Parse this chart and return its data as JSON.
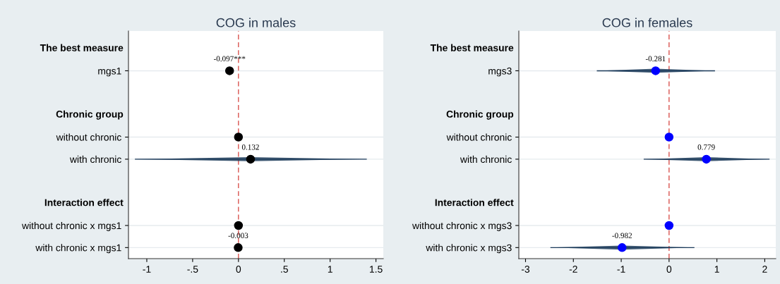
{
  "chart_data": [
    {
      "type": "scatter",
      "orientation": "horizontal",
      "title": "COG in males",
      "categories": [
        "The best measure",
        "mgs1",
        null,
        "Chronic group",
        "without chronic",
        "with chronic",
        null,
        "Interaction effect",
        "without chronic x mgs1",
        "with chronic x mgs1"
      ],
      "color": "#000000",
      "values": [
        null,
        -0.097,
        null,
        null,
        0,
        0.132,
        null,
        null,
        0,
        -0.003
      ],
      "errors": [
        null,
        null,
        null,
        null,
        null,
        [
          -1.13,
          1.4
        ],
        null,
        null,
        null,
        null
      ],
      "value_labels": [
        null,
        "-0.097***",
        null,
        null,
        null,
        "0.132",
        null,
        null,
        null,
        "-0.003"
      ],
      "xlim": [
        -1.2,
        1.58
      ],
      "xticks": [
        {
          "value": -1,
          "label": "-1"
        },
        {
          "value": -0.5,
          "label": "-.5"
        },
        0,
        {
          "value": 0.5,
          "label": ".5"
        },
        1,
        {
          "value": 1.5,
          "label": "1.5"
        }
      ],
      "ref_lines": [
        {
          "axis": "x",
          "value": 0,
          "color": "#d9534f",
          "line_style": "dashed"
        }
      ],
      "grid": "y",
      "marker": "circle",
      "legend": false
    },
    {
      "type": "scatter",
      "orientation": "horizontal",
      "title": "COG in females",
      "categories": [
        "The best measure",
        "mgs3",
        null,
        "Chronic group",
        "without chronic",
        "with chronic",
        null,
        "Interaction effect",
        "without chronic x mgs3",
        "with chronic x mgs3"
      ],
      "color": "#0000ff",
      "values": [
        null,
        -0.281,
        null,
        null,
        0,
        0.779,
        null,
        null,
        0,
        -0.982
      ],
      "errors": [
        null,
        [
          -1.51,
          0.96
        ],
        null,
        null,
        null,
        [
          -0.53,
          2.1
        ],
        null,
        null,
        null,
        [
          -2.48,
          0.53
        ]
      ],
      "value_labels": [
        null,
        "-0.281",
        null,
        null,
        null,
        "0.779",
        null,
        null,
        null,
        "-0.982"
      ],
      "xlim": [
        -3.14,
        2.23
      ],
      "xticks": [
        -3,
        -2,
        -1,
        0,
        1,
        2
      ],
      "ref_lines": [
        {
          "axis": "x",
          "value": 0,
          "color": "#d9534f",
          "line_style": "dashed"
        }
      ],
      "grid": "y",
      "marker": "circle",
      "legend": false
    }
  ]
}
